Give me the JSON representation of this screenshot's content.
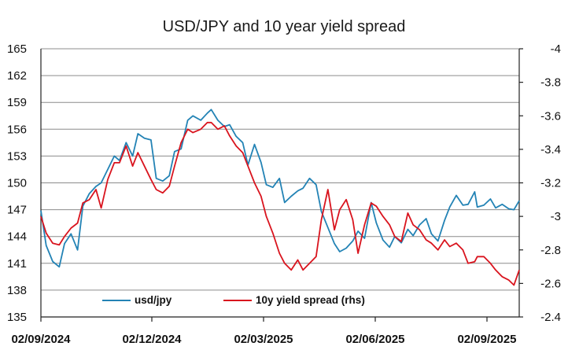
{
  "chart_data": {
    "type": "line",
    "title": "USD/JPY and 10 year yield spread",
    "x_ticks": [
      "02/09/2024",
      "02/12/2024",
      "02/03/2025",
      "02/06/2025",
      "02/09/2025"
    ],
    "y_left": {
      "ticks": [
        "165",
        "162",
        "159",
        "156",
        "153",
        "150",
        "147",
        "144",
        "141",
        "138",
        "135"
      ],
      "ylim": [
        135,
        165
      ]
    },
    "y_right": {
      "ticks": [
        "-4",
        "-3.8",
        "-3.6",
        "-3.4",
        "-3.2",
        "-3",
        "-2.8",
        "-2.6",
        "-2.4"
      ],
      "ylim": [
        -4,
        -2.4
      ],
      "note": "inverted scale"
    },
    "grid": "horizontal",
    "legend_position": "bottom-left",
    "series": [
      {
        "name": "usd/jpy",
        "axis": "left",
        "color": "#2383b5",
        "points": [
          [
            "2024-09-02",
            146.9
          ],
          [
            "2024-09-06",
            143.0
          ],
          [
            "2024-09-11",
            141.2
          ],
          [
            "2024-09-16",
            140.6
          ],
          [
            "2024-09-20",
            143.2
          ],
          [
            "2024-09-25",
            144.3
          ],
          [
            "2024-09-30",
            142.5
          ],
          [
            "2024-10-04",
            147.4
          ],
          [
            "2024-10-09",
            148.8
          ],
          [
            "2024-10-14",
            149.6
          ],
          [
            "2024-10-18",
            150.0
          ],
          [
            "2024-10-23",
            151.5
          ],
          [
            "2024-10-28",
            153.0
          ],
          [
            "2024-11-01",
            152.5
          ],
          [
            "2024-11-06",
            154.5
          ],
          [
            "2024-11-11",
            153.0
          ],
          [
            "2024-11-15",
            155.5
          ],
          [
            "2024-11-20",
            155.0
          ],
          [
            "2024-11-25",
            154.8
          ],
          [
            "2024-11-29",
            150.5
          ],
          [
            "2024-12-04",
            150.2
          ],
          [
            "2024-12-09",
            150.8
          ],
          [
            "2024-12-13",
            153.5
          ],
          [
            "2024-12-18",
            153.8
          ],
          [
            "2024-12-23",
            157.0
          ],
          [
            "2024-12-27",
            157.5
          ],
          [
            "2025-01-02",
            157.0
          ],
          [
            "2025-01-07",
            157.8
          ],
          [
            "2025-01-10",
            158.2
          ],
          [
            "2025-01-15",
            157.0
          ],
          [
            "2025-01-20",
            156.3
          ],
          [
            "2025-01-24",
            156.5
          ],
          [
            "2025-01-29",
            155.2
          ],
          [
            "2025-02-03",
            154.5
          ],
          [
            "2025-02-07",
            152.0
          ],
          [
            "2025-02-12",
            154.3
          ],
          [
            "2025-02-17",
            152.3
          ],
          [
            "2025-02-21",
            149.8
          ],
          [
            "2025-02-26",
            149.5
          ],
          [
            "2025-03-03",
            150.5
          ],
          [
            "2025-03-07",
            147.8
          ],
          [
            "2025-03-12",
            148.5
          ],
          [
            "2025-03-17",
            149.1
          ],
          [
            "2025-03-21",
            149.4
          ],
          [
            "2025-03-26",
            150.5
          ],
          [
            "2025-03-31",
            149.8
          ],
          [
            "2025-04-04",
            146.8
          ],
          [
            "2025-04-09",
            145.0
          ],
          [
            "2025-04-14",
            143.2
          ],
          [
            "2025-04-18",
            142.3
          ],
          [
            "2025-04-23",
            142.7
          ],
          [
            "2025-04-28",
            143.5
          ],
          [
            "2025-05-02",
            144.6
          ],
          [
            "2025-05-07",
            143.8
          ],
          [
            "2025-05-12",
            147.8
          ],
          [
            "2025-05-16",
            145.5
          ],
          [
            "2025-05-21",
            143.6
          ],
          [
            "2025-05-26",
            142.8
          ],
          [
            "2025-05-30",
            144.0
          ],
          [
            "2025-06-04",
            143.3
          ],
          [
            "2025-06-09",
            144.8
          ],
          [
            "2025-06-13",
            144.1
          ],
          [
            "2025-06-18",
            145.3
          ],
          [
            "2025-06-23",
            146.0
          ],
          [
            "2025-06-27",
            144.3
          ],
          [
            "2025-07-02",
            143.5
          ],
          [
            "2025-07-07",
            145.8
          ],
          [
            "2025-07-11",
            147.3
          ],
          [
            "2025-07-16",
            148.6
          ],
          [
            "2025-07-21",
            147.5
          ],
          [
            "2025-07-25",
            147.6
          ],
          [
            "2025-07-30",
            149.0
          ],
          [
            "2025-08-01",
            147.3
          ],
          [
            "2025-08-06",
            147.5
          ],
          [
            "2025-08-11",
            148.2
          ],
          [
            "2025-08-15",
            147.2
          ],
          [
            "2025-08-20",
            147.6
          ],
          [
            "2025-08-25",
            147.1
          ],
          [
            "2025-08-29",
            147.0
          ],
          [
            "2025-09-02",
            148.0
          ]
        ]
      },
      {
        "name": "10y yield spread (rhs)",
        "axis": "right",
        "color": "#d9141e",
        "points": [
          [
            "2024-09-02",
            -3.0
          ],
          [
            "2024-09-06",
            -2.9
          ],
          [
            "2024-09-11",
            -2.84
          ],
          [
            "2024-09-16",
            -2.83
          ],
          [
            "2024-09-20",
            -2.88
          ],
          [
            "2024-09-25",
            -2.93
          ],
          [
            "2024-09-30",
            -2.96
          ],
          [
            "2024-10-04",
            -3.08
          ],
          [
            "2024-10-09",
            -3.1
          ],
          [
            "2024-10-14",
            -3.16
          ],
          [
            "2024-10-18",
            -3.05
          ],
          [
            "2024-10-23",
            -3.22
          ],
          [
            "2024-10-28",
            -3.32
          ],
          [
            "2024-11-01",
            -3.32
          ],
          [
            "2024-11-06",
            -3.42
          ],
          [
            "2024-11-11",
            -3.3
          ],
          [
            "2024-11-15",
            -3.38
          ],
          [
            "2024-11-20",
            -3.3
          ],
          [
            "2024-11-25",
            -3.22
          ],
          [
            "2024-11-29",
            -3.16
          ],
          [
            "2024-12-04",
            -3.14
          ],
          [
            "2024-12-09",
            -3.18
          ],
          [
            "2024-12-13",
            -3.3
          ],
          [
            "2024-12-18",
            -3.44
          ],
          [
            "2024-12-23",
            -3.52
          ],
          [
            "2024-12-27",
            -3.5
          ],
          [
            "2025-01-02",
            -3.52
          ],
          [
            "2025-01-07",
            -3.56
          ],
          [
            "2025-01-10",
            -3.56
          ],
          [
            "2025-01-15",
            -3.52
          ],
          [
            "2025-01-20",
            -3.54
          ],
          [
            "2025-01-24",
            -3.48
          ],
          [
            "2025-01-29",
            -3.42
          ],
          [
            "2025-02-03",
            -3.38
          ],
          [
            "2025-02-07",
            -3.3
          ],
          [
            "2025-02-12",
            -3.2
          ],
          [
            "2025-02-17",
            -3.12
          ],
          [
            "2025-02-21",
            -3.0
          ],
          [
            "2025-02-26",
            -2.9
          ],
          [
            "2025-03-03",
            -2.78
          ],
          [
            "2025-03-07",
            -2.72
          ],
          [
            "2025-03-12",
            -2.68
          ],
          [
            "2025-03-17",
            -2.74
          ],
          [
            "2025-03-21",
            -2.68
          ],
          [
            "2025-03-26",
            -2.72
          ],
          [
            "2025-03-31",
            -2.76
          ],
          [
            "2025-04-04",
            -2.98
          ],
          [
            "2025-04-09",
            -3.16
          ],
          [
            "2025-04-14",
            -2.92
          ],
          [
            "2025-04-18",
            -3.04
          ],
          [
            "2025-04-23",
            -3.1
          ],
          [
            "2025-04-28",
            -2.98
          ],
          [
            "2025-05-02",
            -2.78
          ],
          [
            "2025-05-07",
            -2.95
          ],
          [
            "2025-05-12",
            -3.08
          ],
          [
            "2025-05-16",
            -3.06
          ],
          [
            "2025-05-21",
            -3.0
          ],
          [
            "2025-05-26",
            -2.95
          ],
          [
            "2025-05-30",
            -2.88
          ],
          [
            "2025-06-04",
            -2.85
          ],
          [
            "2025-06-09",
            -3.02
          ],
          [
            "2025-06-13",
            -2.95
          ],
          [
            "2025-06-18",
            -2.92
          ],
          [
            "2025-06-23",
            -2.86
          ],
          [
            "2025-06-27",
            -2.84
          ],
          [
            "2025-07-02",
            -2.8
          ],
          [
            "2025-07-07",
            -2.86
          ],
          [
            "2025-07-11",
            -2.82
          ],
          [
            "2025-07-16",
            -2.84
          ],
          [
            "2025-07-21",
            -2.8
          ],
          [
            "2025-07-25",
            -2.72
          ],
          [
            "2025-07-30",
            -2.73
          ],
          [
            "2025-08-01",
            -2.76
          ],
          [
            "2025-08-06",
            -2.76
          ],
          [
            "2025-08-11",
            -2.72
          ],
          [
            "2025-08-15",
            -2.68
          ],
          [
            "2025-08-20",
            -2.64
          ],
          [
            "2025-08-25",
            -2.62
          ],
          [
            "2025-08-29",
            -2.59
          ],
          [
            "2025-09-02",
            -2.68
          ]
        ]
      }
    ]
  }
}
